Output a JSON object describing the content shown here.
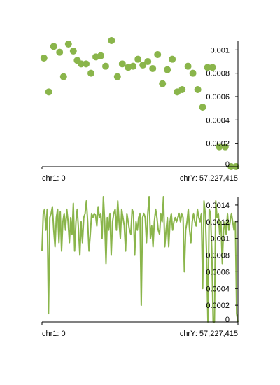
{
  "colors": {
    "series": "#8ab54b",
    "axis": "#000000"
  },
  "chart_data": [
    {
      "type": "scatter",
      "ylim": [
        0,
        0.00108
      ],
      "yticks": [
        "0",
        "0.0002",
        "0.0004",
        "0.0006",
        "0.0008",
        "0.001"
      ],
      "ytick_values": [
        0,
        0.0002,
        0.0004,
        0.0006,
        0.0008,
        0.001
      ],
      "x_start_label": "chr1: 0",
      "x_end_label": "chrY: 57,227,415",
      "grid": false,
      "points": [
        {
          "x": 0.01,
          "y": 0.00093
        },
        {
          "x": 0.035,
          "y": 0.00064
        },
        {
          "x": 0.06,
          "y": 0.00103
        },
        {
          "x": 0.09,
          "y": 0.00098
        },
        {
          "x": 0.11,
          "y": 0.00077
        },
        {
          "x": 0.135,
          "y": 0.00105
        },
        {
          "x": 0.16,
          "y": 0.00099
        },
        {
          "x": 0.18,
          "y": 0.00091
        },
        {
          "x": 0.2,
          "y": 0.00088
        },
        {
          "x": 0.225,
          "y": 0.00088
        },
        {
          "x": 0.25,
          "y": 0.0008
        },
        {
          "x": 0.275,
          "y": 0.00094
        },
        {
          "x": 0.3,
          "y": 0.00095
        },
        {
          "x": 0.325,
          "y": 0.00086
        },
        {
          "x": 0.355,
          "y": 0.00108
        },
        {
          "x": 0.385,
          "y": 0.00077
        },
        {
          "x": 0.41,
          "y": 0.00088
        },
        {
          "x": 0.44,
          "y": 0.00085
        },
        {
          "x": 0.465,
          "y": 0.00086
        },
        {
          "x": 0.49,
          "y": 0.00092
        },
        {
          "x": 0.515,
          "y": 0.00087
        },
        {
          "x": 0.54,
          "y": 0.0009
        },
        {
          "x": 0.565,
          "y": 0.00084
        },
        {
          "x": 0.59,
          "y": 0.00096
        },
        {
          "x": 0.615,
          "y": 0.00071
        },
        {
          "x": 0.64,
          "y": 0.00083
        },
        {
          "x": 0.665,
          "y": 0.00092
        },
        {
          "x": 0.69,
          "y": 0.00064
        },
        {
          "x": 0.715,
          "y": 0.00066
        },
        {
          "x": 0.745,
          "y": 0.00086
        },
        {
          "x": 0.77,
          "y": 0.0008
        },
        {
          "x": 0.795,
          "y": 0.00066
        },
        {
          "x": 0.82,
          "y": 0.00051
        },
        {
          "x": 0.845,
          "y": 0.00085
        },
        {
          "x": 0.87,
          "y": 0.00085
        },
        {
          "x": 0.905,
          "y": 0.00017
        },
        {
          "x": 0.935,
          "y": 0.00017
        },
        {
          "x": 0.965,
          "y": 0.0
        },
        {
          "x": 0.99,
          "y": 0.0
        }
      ]
    },
    {
      "type": "line",
      "ylim": [
        0,
        0.0015
      ],
      "yticks": [
        "0",
        "0.0002",
        "0.0004",
        "0.0006",
        "0.0008",
        "0.001",
        "0.0012",
        "0.0014"
      ],
      "ytick_values": [
        0,
        0.0002,
        0.0004,
        0.0006,
        0.0008,
        0.001,
        0.0012,
        0.0014
      ],
      "x_start_label": "chr1: 0",
      "x_end_label": "chrY: 57,227,415",
      "grid": false,
      "values": [
        0.00085,
        0.0013,
        0.00135,
        0.0011,
        0.00135,
        0.0001,
        0.00125,
        0.0013,
        0.00138,
        0.0011,
        0.0009,
        0.00125,
        0.00135,
        0.00095,
        0.00132,
        0.00085,
        0.0012,
        0.0013,
        0.0011,
        0.00135,
        0.0012,
        0.00095,
        0.00125,
        0.00105,
        0.00142,
        0.00085,
        0.0012,
        0.00135,
        0.0011,
        0.0008,
        0.0012,
        0.00095,
        0.00125,
        0.0013,
        0.00145,
        0.0012,
        0.00085,
        0.00105,
        0.0013,
        0.00125,
        0.0013,
        0.00128,
        0.00115,
        0.00138,
        0.00125,
        0.0013,
        0.001,
        0.0015,
        0.0012,
        0.0007,
        0.00125,
        0.0011,
        0.0013,
        0.0008,
        0.0012,
        0.0013,
        0.00135,
        0.0011,
        0.00145,
        0.0012,
        0.001,
        0.00135,
        0.00125,
        0.00115,
        0.00085,
        0.0013,
        0.0012,
        0.0011,
        0.00105,
        0.00135,
        0.0013,
        0.0008,
        0.0012,
        0.0011,
        0.00125,
        0.0013,
        0.0002,
        0.00125,
        0.0013,
        0.00125,
        0.00095,
        0.0013,
        0.0015,
        0.001,
        0.00115,
        0.0009,
        0.0012,
        0.00135,
        0.00125,
        0.0011,
        0.00105,
        0.0013,
        0.0012,
        0.0015,
        0.0009,
        0.0011,
        0.00125,
        0.0009,
        0.0012,
        0.0013,
        0.0011,
        0.0012,
        0.00125,
        0.0012,
        0.00125,
        0.0013,
        0.0012,
        0.0013,
        0.00125,
        0.0006,
        0.0011,
        0.0012,
        0.00135,
        0.0011,
        0.00095,
        0.0012,
        0.0013,
        0.0012,
        0.00115,
        0.00135,
        0.00125,
        0.0012,
        0.0013,
        0.0004,
        0.00145,
        0.0013,
        0.0008,
        0.0,
        0.00135,
        0.0013,
        0.00085,
        0.0,
        0.0,
        0.00145,
        0.00125,
        0.0013,
        0.00105,
        0.0012,
        0.0007,
        0.0011,
        0.0012,
        0.00105,
        0.0013,
        0.0011,
        0.0012,
        0.0013,
        0.0012,
        0.0011,
        0.0012,
        0.0001,
        0.0
      ]
    }
  ]
}
